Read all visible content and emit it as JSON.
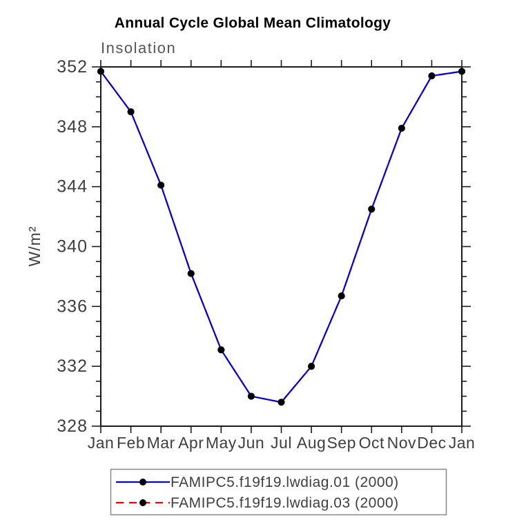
{
  "page": {
    "background": "#ffffff"
  },
  "chart_data": {
    "type": "line",
    "title": "Annual Cycle Global Mean Climatology",
    "subtitle": "Insolation",
    "xlabel": "",
    "ylabel": "W/m²",
    "categories": [
      "Jan",
      "Feb",
      "Mar",
      "Apr",
      "May",
      "Jun",
      "Jul",
      "Aug",
      "Sep",
      "Oct",
      "Nov",
      "Dec",
      "Jan"
    ],
    "ylim": [
      328,
      352
    ],
    "y_ticks": [
      328,
      332,
      336,
      340,
      344,
      348,
      352
    ],
    "y_major_step": 4,
    "y_minor_step": 1,
    "grid": false,
    "legend_position": "bottom",
    "series": [
      {
        "name": "FAMIPC5.f19f19.lwdiag.01 (2000)",
        "color": "#0000e0",
        "line_style": "solid",
        "marker": "circle",
        "marker_color": "#000000",
        "values": [
          351.7,
          349.0,
          344.1,
          338.2,
          333.1,
          330.0,
          329.6,
          332.0,
          336.7,
          342.5,
          347.9,
          351.4,
          351.7
        ]
      },
      {
        "name": "FAMIPC5.f19f19.lwdiag.03 (2000)",
        "color": "#e80000",
        "line_style": "dashed",
        "marker": "circle",
        "marker_color": "#000000",
        "values": [
          351.7,
          349.0,
          344.1,
          338.2,
          333.1,
          330.0,
          329.6,
          332.0,
          336.7,
          342.5,
          347.9,
          351.4,
          351.7
        ],
        "note": "overlaps series 1 exactly; hidden beneath blue line in plot area"
      }
    ],
    "colors": {
      "axis": "#1a1a1a",
      "tick_label": "#3f3f3f",
      "title": "#000000",
      "subtitle": "#565656",
      "legend_border": "#888888",
      "legend_text": "#3f3f3f"
    }
  }
}
